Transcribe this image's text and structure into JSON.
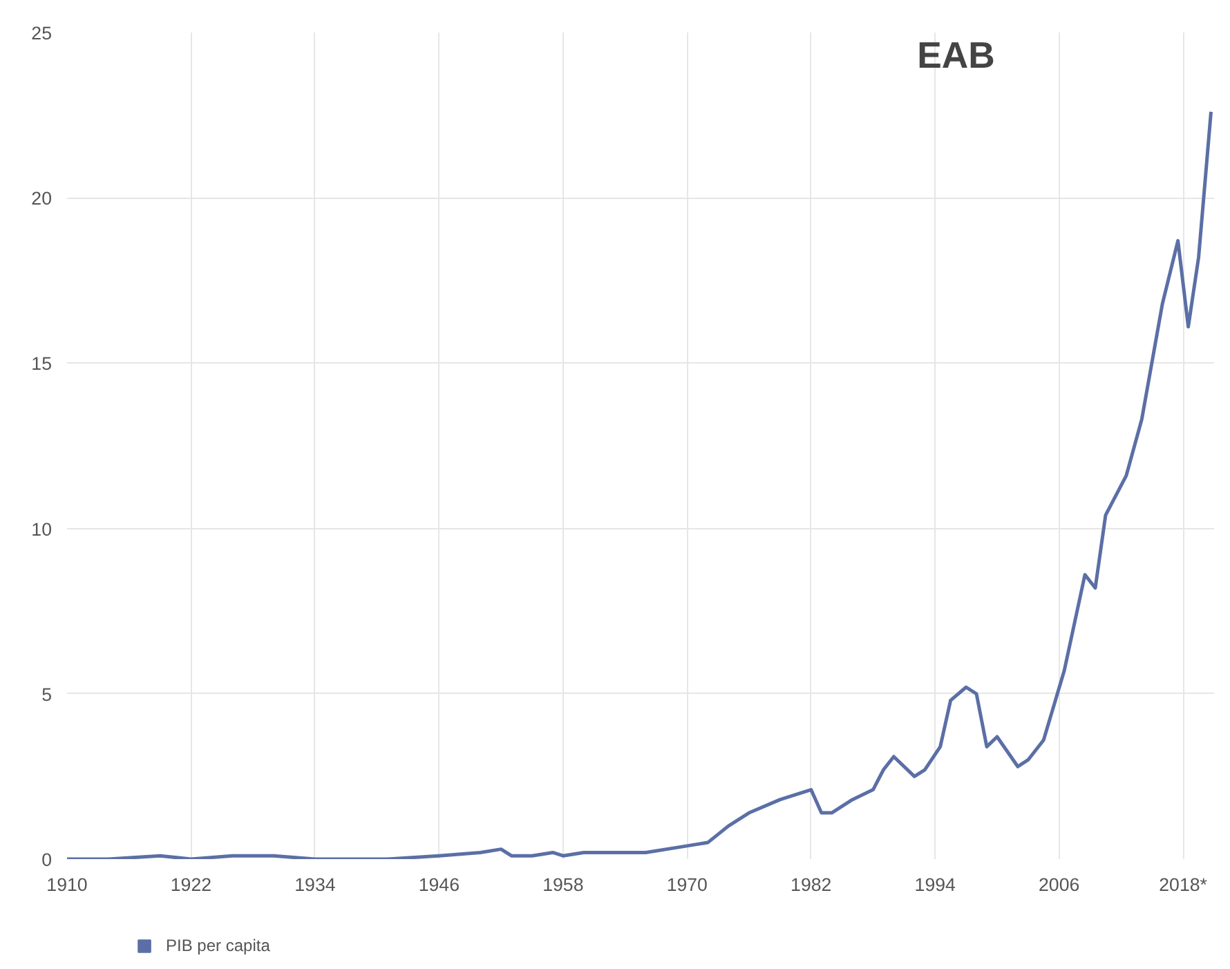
{
  "chart_data": {
    "type": "line",
    "x": [
      1910,
      1914,
      1919,
      1922,
      1926,
      1930,
      1934,
      1941,
      1946,
      1950,
      1952,
      1953,
      1955,
      1957,
      1958,
      1960,
      1964,
      1966,
      1970,
      1972,
      1974,
      1976,
      1979,
      1982,
      1983,
      1984,
      1986,
      1988,
      1989,
      1990,
      1992,
      1993,
      1994.5,
      1995.5,
      1997,
      1998,
      1999,
      2000,
      2002,
      2003,
      2004.5,
      2006.5,
      2008.5,
      2009.5,
      2010.5,
      2012.5,
      2014,
      2016,
      2017.5,
      2018.5,
      2019.5,
      2020.7
    ],
    "series": [
      {
        "name": "PIB per capita",
        "color": "#5b6fa6",
        "values": [
          0.0,
          0.0,
          0.1,
          0.0,
          0.1,
          0.1,
          0.0,
          0.0,
          0.1,
          0.2,
          0.3,
          0.1,
          0.1,
          0.2,
          0.1,
          0.2,
          0.2,
          0.2,
          0.4,
          0.5,
          1.0,
          1.4,
          1.8,
          2.1,
          1.4,
          1.4,
          1.8,
          2.1,
          2.7,
          3.1,
          2.5,
          2.7,
          3.4,
          4.8,
          5.2,
          5.0,
          3.4,
          3.7,
          2.8,
          3.0,
          3.6,
          5.7,
          8.6,
          8.2,
          10.4,
          11.6,
          13.3,
          16.8,
          18.7,
          16.1,
          18.2,
          22.6
        ]
      }
    ],
    "xlim": [
      1910,
      2021
    ],
    "ylim": [
      0,
      25
    ],
    "xticks": [
      1910,
      1922,
      1934,
      1946,
      1958,
      1970,
      1982,
      1994,
      2006,
      {
        "value": 2018,
        "label": "2018*"
      }
    ],
    "yticks": [
      0,
      5,
      10,
      15,
      20,
      25
    ],
    "annotations": [
      "EAB"
    ],
    "grid": true,
    "legend": "bottom left",
    "line_style": "solid",
    "marker": "none"
  }
}
